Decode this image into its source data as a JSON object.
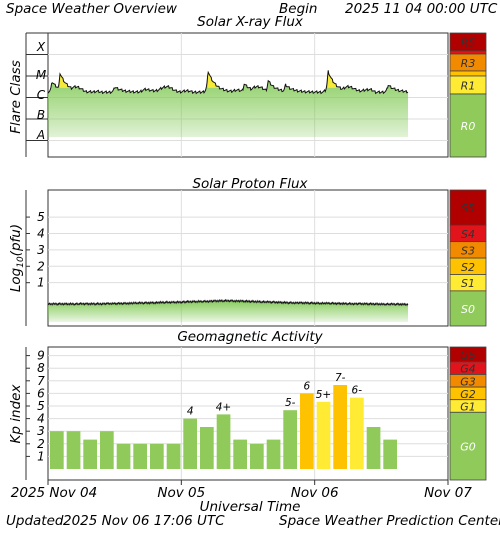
{
  "header": {
    "title": "Space Weather Overview",
    "begin_label": "Begin",
    "begin_value": "2025 11 04 00:00 UTC"
  },
  "footer": {
    "updated_label": "Updated",
    "updated_value": "2025 Nov 06 17:06 UTC",
    "credit": "Space Weather Prediction Center"
  },
  "colors": {
    "plot_green": "#7ec850",
    "level_green": "#8fca5a",
    "yellow": "#ffeb33",
    "amber": "#ffc200",
    "orange": "#f28a00",
    "red": "#e2141b",
    "dark_red": "#b00000",
    "grid": "#dedede"
  },
  "chart_data": [
    {
      "type": "area",
      "title": "Solar X-ray Flux",
      "ylabel": "Flare Class",
      "x_range": [
        "2025 Nov 04",
        "2025 Nov 07"
      ],
      "ylim": [
        "A",
        "X"
      ],
      "y_ticks": [
        "X",
        "M",
        "C",
        "B",
        "A"
      ],
      "x": [
        "Nov 04 00:00",
        "Nov 04 06:00",
        "Nov 04 09:00",
        "Nov 04 18:00",
        "Nov 05 00:00",
        "Nov 05 08:00",
        "Nov 05 16:00",
        "Nov 05 22:00",
        "Nov 06 03:00",
        "Nov 06 07:00",
        "Nov 06 12:00",
        "Nov 06 17:00"
      ],
      "series": [
        {
          "values": [
            "C4",
            "M2",
            "C3",
            "C2",
            "C2",
            "C4",
            "M3",
            "C3",
            "C3",
            "M1",
            "C5",
            "C3"
          ]
        }
      ],
      "scale_labels": [
        "R5",
        "R3",
        "R1",
        "R0"
      ]
    },
    {
      "type": "area",
      "title": "Solar Proton Flux",
      "ylabel": "Log10(pfu)",
      "x_range": [
        "2025 Nov 04",
        "2025 Nov 07"
      ],
      "ylim": [
        -1.5,
        5.5
      ],
      "y_ticks": [
        "5",
        "4",
        "3",
        "2",
        "1"
      ],
      "x": [
        "Nov 04 00:00",
        "Nov 04 12:00",
        "Nov 05 00:00",
        "Nov 05 12:00",
        "Nov 06 00:00",
        "Nov 06 12:00",
        "Nov 06 17:00"
      ],
      "series": [
        {
          "values": [
            -0.3,
            -0.28,
            -0.2,
            -0.1,
            -0.22,
            -0.28,
            -0.32
          ]
        }
      ],
      "scale_labels": [
        "S5",
        "S4",
        "S3",
        "S2",
        "S1",
        "S0"
      ]
    },
    {
      "type": "bar",
      "title": "Geomagnetic Activity",
      "ylabel": "Kp index",
      "xlabel": "Universal Time",
      "ylim": [
        0,
        10
      ],
      "y_ticks": [
        "9",
        "8",
        "7",
        "6",
        "5",
        "4",
        "3",
        "2",
        "1"
      ],
      "x_ticks": [
        "2025 Nov 04",
        "Nov 05",
        "Nov 06",
        "Nov 07"
      ],
      "values": [
        3,
        3,
        2.33,
        3,
        2,
        2,
        2,
        2,
        4,
        3.33,
        4.33,
        2.33,
        2,
        2.33,
        4.67,
        6,
        5.33,
        6.67,
        5.67,
        3.33,
        2.33
      ],
      "data_labels": [
        "",
        "",
        "",
        "",
        "",
        "",
        "",
        "",
        "4",
        "",
        "4+",
        "",
        "",
        "",
        "5-",
        "6",
        "5+",
        "7-",
        "6-",
        "",
        ""
      ],
      "scale_labels": [
        "G5",
        "G4",
        "G3",
        "G2",
        "G1",
        "G0"
      ]
    }
  ]
}
